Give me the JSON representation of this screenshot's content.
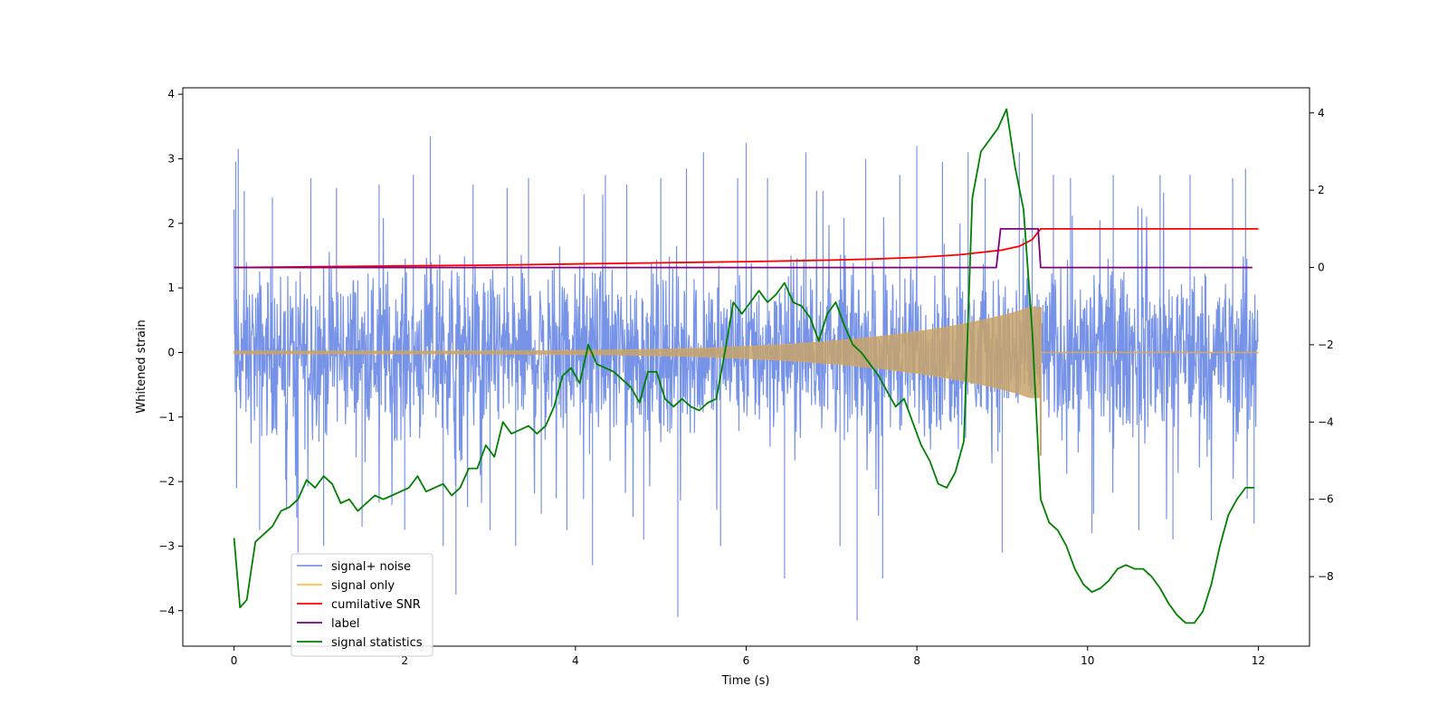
{
  "chart_data": {
    "type": "line",
    "title": "",
    "xlabel": "Time (s)",
    "ylabel": "Whitened strain",
    "ylabel_right": "",
    "xlim": [
      -0.6,
      12.6
    ],
    "ylim": [
      -4.55,
      4.1
    ],
    "ylim_right": [
      -9.8,
      4.65
    ],
    "xticks": [
      0,
      2,
      4,
      6,
      8,
      10,
      12
    ],
    "yticks": [
      4,
      3,
      2,
      1,
      0,
      -1,
      -2,
      -3,
      -4
    ],
    "yticks_right": [
      4,
      2,
      0,
      -2,
      -4,
      -6,
      -8
    ],
    "legend_position": "lower-left",
    "grid": false,
    "series": [
      {
        "name": "signal+ noise",
        "axis": "left",
        "color": "#6b8ae6",
        "kind": "noise",
        "t_range": [
          0,
          12
        ],
        "band": [
          -1.6,
          1.4
        ],
        "spikes": [
          [
            0.02,
            2.95
          ],
          [
            0.05,
            3.15
          ],
          [
            0.03,
            -2.1
          ],
          [
            0.12,
            2.5
          ],
          [
            0.3,
            -2.75
          ],
          [
            0.45,
            2.4
          ],
          [
            0.75,
            -3.1
          ],
          [
            0.9,
            2.7
          ],
          [
            1.05,
            -3.0
          ],
          [
            1.2,
            2.55
          ],
          [
            1.5,
            -2.7
          ],
          [
            1.7,
            2.6
          ],
          [
            2.0,
            -2.75
          ],
          [
            2.1,
            2.75
          ],
          [
            2.3,
            3.35
          ],
          [
            2.45,
            -3.0
          ],
          [
            2.6,
            -3.75
          ],
          [
            2.8,
            2.6
          ],
          [
            3.0,
            -2.75
          ],
          [
            3.2,
            2.55
          ],
          [
            3.3,
            -3.0
          ],
          [
            3.45,
            2.7
          ],
          [
            3.6,
            -2.5
          ],
          [
            3.9,
            -2.75
          ],
          [
            4.1,
            2.45
          ],
          [
            4.2,
            -3.3
          ],
          [
            4.35,
            2.75
          ],
          [
            4.6,
            2.6
          ],
          [
            4.8,
            -2.9
          ],
          [
            5.0,
            2.7
          ],
          [
            5.2,
            -4.1
          ],
          [
            5.3,
            2.85
          ],
          [
            5.5,
            3.1
          ],
          [
            5.7,
            -3.0
          ],
          [
            5.9,
            2.7
          ],
          [
            6.0,
            3.25
          ],
          [
            6.25,
            2.7
          ],
          [
            6.45,
            -3.5
          ],
          [
            6.7,
            3.1
          ],
          [
            6.9,
            2.5
          ],
          [
            7.1,
            -3.0
          ],
          [
            7.3,
            -4.15
          ],
          [
            7.4,
            3.0
          ],
          [
            7.6,
            -3.5
          ],
          [
            7.8,
            2.75
          ],
          [
            8.0,
            3.2
          ],
          [
            8.3,
            2.95
          ],
          [
            8.6,
            3.1
          ],
          [
            8.8,
            2.7
          ],
          [
            9.0,
            -3.1
          ],
          [
            9.2,
            3.1
          ],
          [
            9.35,
            3.7
          ],
          [
            9.6,
            2.75
          ],
          [
            9.8,
            2.7
          ],
          [
            10.05,
            -2.8
          ],
          [
            10.3,
            2.75
          ],
          [
            10.6,
            -2.75
          ],
          [
            10.85,
            2.75
          ],
          [
            11.0,
            -2.9
          ],
          [
            11.2,
            2.75
          ],
          [
            11.45,
            -2.6
          ],
          [
            11.7,
            2.7
          ],
          [
            11.85,
            2.85
          ],
          [
            11.95,
            -2.65
          ]
        ]
      },
      {
        "name": "signal only",
        "axis": "left",
        "color": "#ffc14d",
        "kind": "chirp",
        "t_range": [
          0,
          9.45
        ],
        "merger_time": 9.45,
        "amplitude_end": 0.7
      },
      {
        "name": "cumilative SNR",
        "axis": "right",
        "color": "#ff0000",
        "x": [
          0,
          1,
          2,
          3,
          4,
          5,
          6,
          7,
          7.5,
          8,
          8.5,
          9,
          9.2,
          9.35,
          9.45,
          12
        ],
        "y": [
          0,
          0.02,
          0.04,
          0.06,
          0.09,
          0.12,
          0.15,
          0.19,
          0.22,
          0.26,
          0.33,
          0.45,
          0.55,
          0.72,
          1.0,
          1.0
        ]
      },
      {
        "name": "label",
        "axis": "right",
        "color": "#800080",
        "x": [
          0,
          8.93,
          8.98,
          9.42,
          9.45,
          11.93
        ],
        "y": [
          0,
          0,
          1,
          1,
          0,
          0
        ]
      },
      {
        "name": "signal statistics",
        "axis": "right",
        "color": "#008000",
        "x": [
          0,
          0.07,
          0.15,
          0.25,
          0.35,
          0.45,
          0.55,
          0.65,
          0.75,
          0.85,
          0.95,
          1.05,
          1.15,
          1.25,
          1.35,
          1.45,
          1.55,
          1.65,
          1.75,
          1.85,
          1.95,
          2.05,
          2.15,
          2.25,
          2.35,
          2.45,
          2.55,
          2.65,
          2.75,
          2.85,
          2.95,
          3.05,
          3.15,
          3.25,
          3.35,
          3.45,
          3.55,
          3.65,
          3.75,
          3.85,
          3.95,
          4.05,
          4.15,
          4.25,
          4.35,
          4.45,
          4.55,
          4.65,
          4.75,
          4.85,
          4.95,
          5.05,
          5.15,
          5.25,
          5.35,
          5.45,
          5.55,
          5.65,
          5.75,
          5.85,
          5.95,
          6.05,
          6.15,
          6.25,
          6.35,
          6.45,
          6.55,
          6.65,
          6.75,
          6.85,
          6.95,
          7.05,
          7.15,
          7.25,
          7.35,
          7.45,
          7.55,
          7.65,
          7.75,
          7.85,
          7.95,
          8.05,
          8.15,
          8.25,
          8.35,
          8.45,
          8.55,
          8.65,
          8.75,
          8.85,
          8.95,
          9.05,
          9.15,
          9.25,
          9.35,
          9.45,
          9.55,
          9.65,
          9.75,
          9.85,
          9.95,
          10.05,
          10.15,
          10.25,
          10.35,
          10.45,
          10.55,
          10.65,
          10.75,
          10.85,
          10.95,
          11.05,
          11.15,
          11.25,
          11.35,
          11.45,
          11.55,
          11.65,
          11.75,
          11.85,
          11.95
        ],
        "y": [
          -7.0,
          -8.8,
          -8.6,
          -7.1,
          -6.9,
          -6.7,
          -6.3,
          -6.2,
          -6.0,
          -5.5,
          -5.7,
          -5.4,
          -5.6,
          -6.1,
          -6.0,
          -6.3,
          -6.1,
          -5.9,
          -6.0,
          -5.9,
          -5.8,
          -5.7,
          -5.4,
          -5.8,
          -5.7,
          -5.6,
          -5.9,
          -5.7,
          -5.2,
          -5.2,
          -4.6,
          -4.9,
          -4.0,
          -4.3,
          -4.2,
          -4.1,
          -4.3,
          -4.1,
          -3.6,
          -2.8,
          -2.6,
          -3.0,
          -2.0,
          -2.5,
          -2.6,
          -2.7,
          -2.9,
          -3.1,
          -3.5,
          -2.7,
          -2.7,
          -3.4,
          -3.6,
          -3.4,
          -3.6,
          -3.7,
          -3.5,
          -3.4,
          -2.2,
          -0.9,
          -1.2,
          -0.9,
          -0.6,
          -0.9,
          -0.7,
          -0.4,
          -0.9,
          -1.0,
          -1.3,
          -1.9,
          -1.2,
          -0.9,
          -1.5,
          -2.0,
          -2.2,
          -2.5,
          -2.8,
          -3.2,
          -3.6,
          -3.4,
          -4.0,
          -4.6,
          -5.0,
          -5.6,
          -5.7,
          -5.3,
          -4.5,
          1.8,
          3.0,
          3.3,
          3.6,
          4.1,
          2.6,
          1.5,
          -1.6,
          -6.0,
          -6.6,
          -6.8,
          -7.2,
          -7.8,
          -8.2,
          -8.4,
          -8.3,
          -8.1,
          -7.8,
          -7.7,
          -7.8,
          -7.8,
          -8.0,
          -8.3,
          -8.7,
          -9.0,
          -9.2,
          -9.2,
          -8.9,
          -8.2,
          -7.2,
          -6.4,
          -6.0,
          -5.7,
          -5.7
        ]
      }
    ]
  }
}
